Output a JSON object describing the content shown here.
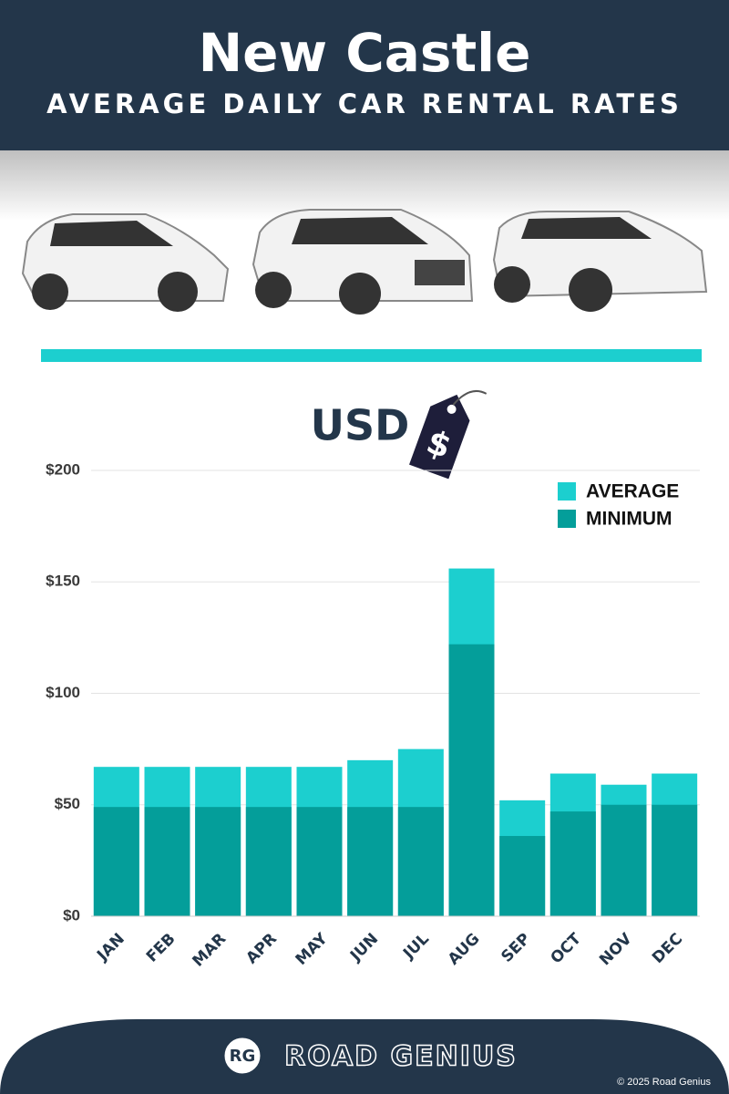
{
  "header": {
    "title": "New Castle",
    "subtitle": "AVERAGE DAILY CAR RENTAL RATES"
  },
  "chart_data": {
    "type": "bar",
    "mode": "overlay",
    "currency_label": "USD",
    "currency_symbol": "$",
    "categories": [
      "JAN",
      "FEB",
      "MAR",
      "APR",
      "MAY",
      "JUN",
      "JUL",
      "AUG",
      "SEP",
      "OCT",
      "NOV",
      "DEC"
    ],
    "series": [
      {
        "name": "AVERAGE",
        "color": "#1ccfcf",
        "values": [
          67,
          67,
          67,
          67,
          67,
          70,
          75,
          156,
          52,
          64,
          59,
          64
        ]
      },
      {
        "name": "MINIMUM",
        "color": "#049e9a",
        "values": [
          49,
          49,
          49,
          49,
          49,
          49,
          49,
          122,
          36,
          47,
          50,
          50
        ]
      }
    ],
    "ylim": [
      0,
      200
    ],
    "yticks": [
      {
        "value": 0,
        "label": "$0"
      },
      {
        "value": 50,
        "label": "$50"
      },
      {
        "value": 100,
        "label": "$100"
      },
      {
        "value": 150,
        "label": "$150"
      },
      {
        "value": 200,
        "label": "$200"
      }
    ],
    "grid": true,
    "legend": "top-right"
  },
  "footer": {
    "logo_initials": "RG",
    "brand": "ROAD GENIUS",
    "copyright": "© 2025 Road Genius"
  }
}
